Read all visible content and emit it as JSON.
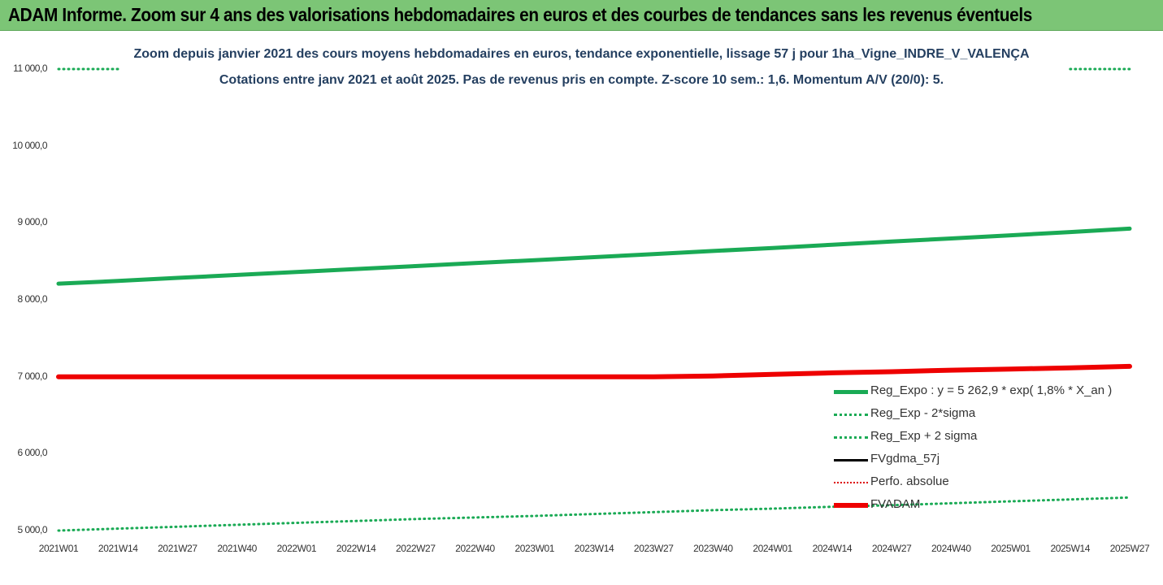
{
  "banner": {
    "title": "ADAM Informe. Zoom sur 4 ans des valorisations hebdomadaires en euros et des courbes de tendances sans les revenus éventuels"
  },
  "colors": {
    "banner_bg": "#7cc576",
    "reg_expo": "#1aaa55",
    "fvadam": "#ee0000",
    "fvgdma": "#000000",
    "perfo": "#dd0000",
    "title_text": "#243f60"
  },
  "chart_data": {
    "type": "line",
    "title": "Zoom depuis janvier 2021 des cours moyens hebdomadaires en euros, tendance exponentielle, lissage 57 j pour 1ha_Vigne_INDRE_V_VALENÇA",
    "subtitle": "Cotations entre janv 2021 et août 2025.  Pas de revenus pris en compte. Z-score 10 sem.: 1,6. Momentum A/V (20/0): 5.",
    "xlabel": "",
    "ylabel": "",
    "ylim": [
      5000,
      11000
    ],
    "yticks": [
      "5 000,0",
      "6 000,0",
      "7 000,0",
      "8 000,0",
      "9 000,0",
      "10 000,0",
      "11 000,0"
    ],
    "x_categories": [
      "2021W01",
      "2021W14",
      "2021W27",
      "2021W40",
      "2022W01",
      "2022W14",
      "2022W27",
      "2022W40",
      "2023W01",
      "2023W14",
      "2023W27",
      "2023W40",
      "2024W01",
      "2024W14",
      "2024W27",
      "2024W40",
      "2025W01",
      "2025W14",
      "2025W27"
    ],
    "grid": false,
    "legend_position": "bottom-right",
    "series": [
      {
        "name": "Reg_Expo : y = 5 262,9 * exp( 1,8% *  X_an )",
        "style": "solid",
        "values": [
          8210,
          8245,
          8285,
          8323,
          8361,
          8400,
          8438,
          8477,
          8515,
          8555,
          8595,
          8635,
          8674,
          8716,
          8757,
          8798,
          8839,
          8881,
          8925
        ]
      },
      {
        "name": "Reg_Exp - 2*sigma",
        "style": "dotted",
        "values": [
          5000,
          5025,
          5050,
          5075,
          5100,
          5125,
          5150,
          5170,
          5190,
          5215,
          5240,
          5265,
          5285,
          5310,
          5330,
          5355,
          5380,
          5405,
          5430
        ]
      },
      {
        "name": "Reg_Exp + 2 sigma",
        "style": "dotted",
        "values": [
          11000,
          11000,
          null,
          null,
          null,
          null,
          null,
          null,
          null,
          null,
          null,
          null,
          null,
          null,
          null,
          null,
          null,
          11000,
          11000
        ]
      },
      {
        "name": "FVgdma_57j",
        "style": "solid",
        "values": []
      },
      {
        "name": "Perfo. absolue",
        "style": "dotted",
        "values": []
      },
      {
        "name": "FVADAM",
        "style": "solid-thick",
        "values": [
          7000,
          7000,
          7000,
          7000,
          7000,
          7000,
          7000,
          7000,
          7000,
          7000,
          7000,
          7010,
          7030,
          7050,
          7065,
          7085,
          7100,
          7115,
          7135
        ]
      }
    ]
  }
}
